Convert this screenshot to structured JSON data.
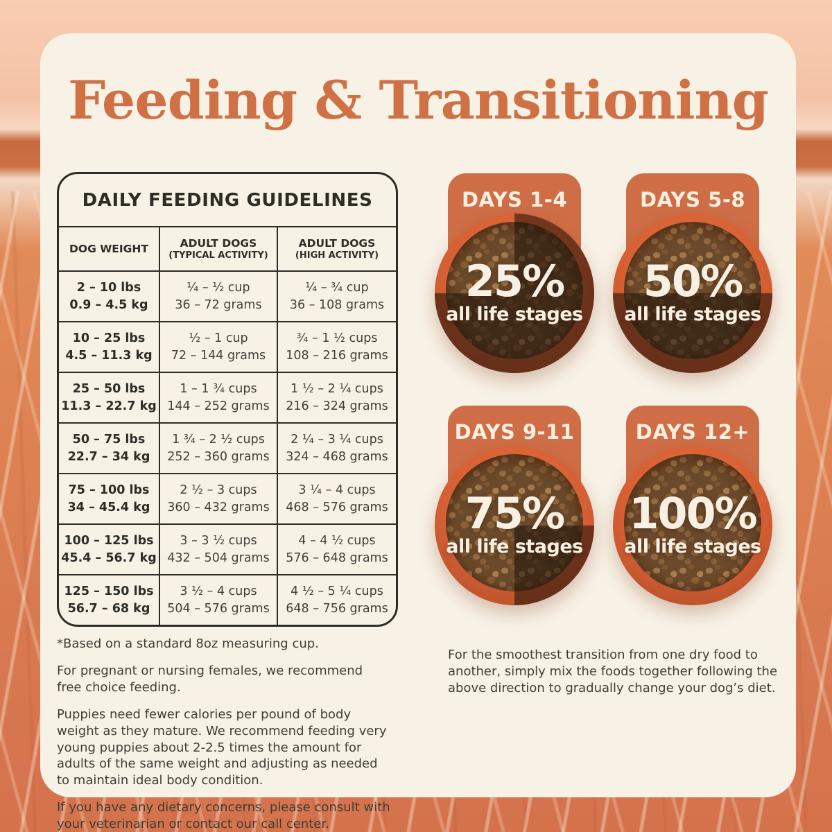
{
  "page": {
    "title": "Feeding & Transitioning"
  },
  "colors": {
    "accent_orange": "#cf7045",
    "bowl_rim_orange": "#d55f33",
    "day_label_orange": "#cf6e46",
    "card_cream": "#f8f2e6",
    "table_ink": "#2d2c27",
    "field_orange": "#dd8152",
    "sky_peach": "#f4c2a5"
  },
  "table": {
    "title": "DAILY FEEDING GUIDELINES",
    "columns": [
      {
        "label": "DOG WEIGHT",
        "sub": ""
      },
      {
        "label": "ADULT DOGS",
        "sub": "(TYPICAL ACTIVITY)"
      },
      {
        "label": "ADULT DOGS",
        "sub": "(HIGH ACTIVITY)"
      }
    ],
    "rows": [
      {
        "lbs": "2 – 10 lbs",
        "kg": "0.9 – 4.5 kg",
        "typical_cups": "¼ – ½ cup",
        "typical_grams": "36 – 72 grams",
        "high_cups": "¼ – ¾ cup",
        "high_grams": "36 – 108 grams"
      },
      {
        "lbs": "10 – 25 lbs",
        "kg": "4.5 – 11.3 kg",
        "typical_cups": "½ – 1 cup",
        "typical_grams": "72 – 144 grams",
        "high_cups": "¾ – 1 ½ cups",
        "high_grams": "108 – 216 grams"
      },
      {
        "lbs": "25 – 50 lbs",
        "kg": "11.3 – 22.7 kg",
        "typical_cups": "1 – 1 ¾ cups",
        "typical_grams": "144 – 252 grams",
        "high_cups": "1 ½ – 2 ¼ cups",
        "high_grams": "216 – 324 grams"
      },
      {
        "lbs": "50 – 75 lbs",
        "kg": "22.7 – 34 kg",
        "typical_cups": "1 ¾ – 2 ½ cups",
        "typical_grams": "252 – 360 grams",
        "high_cups": "2 ¼ – 3 ¼ cups",
        "high_grams": "324 – 468 grams"
      },
      {
        "lbs": "75 – 100 lbs",
        "kg": "34 – 45.4 kg",
        "typical_cups": "2 ½ – 3 cups",
        "typical_grams": "360 – 432 grams",
        "high_cups": "3 ¼ – 4 cups",
        "high_grams": "468 – 576 grams"
      },
      {
        "lbs": "100 – 125 lbs",
        "kg": "45.4 – 56.7 kg",
        "typical_cups": "3 – 3 ½ cups",
        "typical_grams": "432 – 504 grams",
        "high_cups": "4 – 4 ½ cups",
        "high_grams": "576 – 648 grams"
      },
      {
        "lbs": "125 – 150 lbs",
        "kg": "56.7 – 68 kg",
        "typical_cups": "3 ½ – 4 cups",
        "typical_grams": "504 – 576 grams",
        "high_cups": "4 ½ – 5 ¼ cups",
        "high_grams": "648 – 756 grams"
      }
    ],
    "footnote": "*Based on a standard 8oz measuring cup."
  },
  "notes": {
    "pregnant": "For pregnant or nursing females, we recommend free choice feeding.",
    "puppies": "Puppies need fewer calories per pound of body weight as they mature. We recommend feeding very young puppies about 2-2.5 times the amount for adults of the same weight and adjusting as needed to maintain ideal body condition.",
    "dietary": "If you have any dietary concerns, please consult with your veterinarian or contact our call center."
  },
  "transition": {
    "bowls": [
      {
        "label": "DAYS 1-4",
        "percent": "25%",
        "sub": "all life stages",
        "new_food_percent": 25
      },
      {
        "label": "DAYS 5-8",
        "percent": "50%",
        "sub": "all life stages",
        "new_food_percent": 50
      },
      {
        "label": "DAYS 9-11",
        "percent": "75%",
        "sub": "all life stages",
        "new_food_percent": 75
      },
      {
        "label": "DAYS 12+",
        "percent": "100%",
        "sub": "all life stages",
        "new_food_percent": 100
      }
    ],
    "note": "For the smoothest transition from one dry food to another, simply mix the foods together following the above direction to gradually change your dog’s diet."
  }
}
